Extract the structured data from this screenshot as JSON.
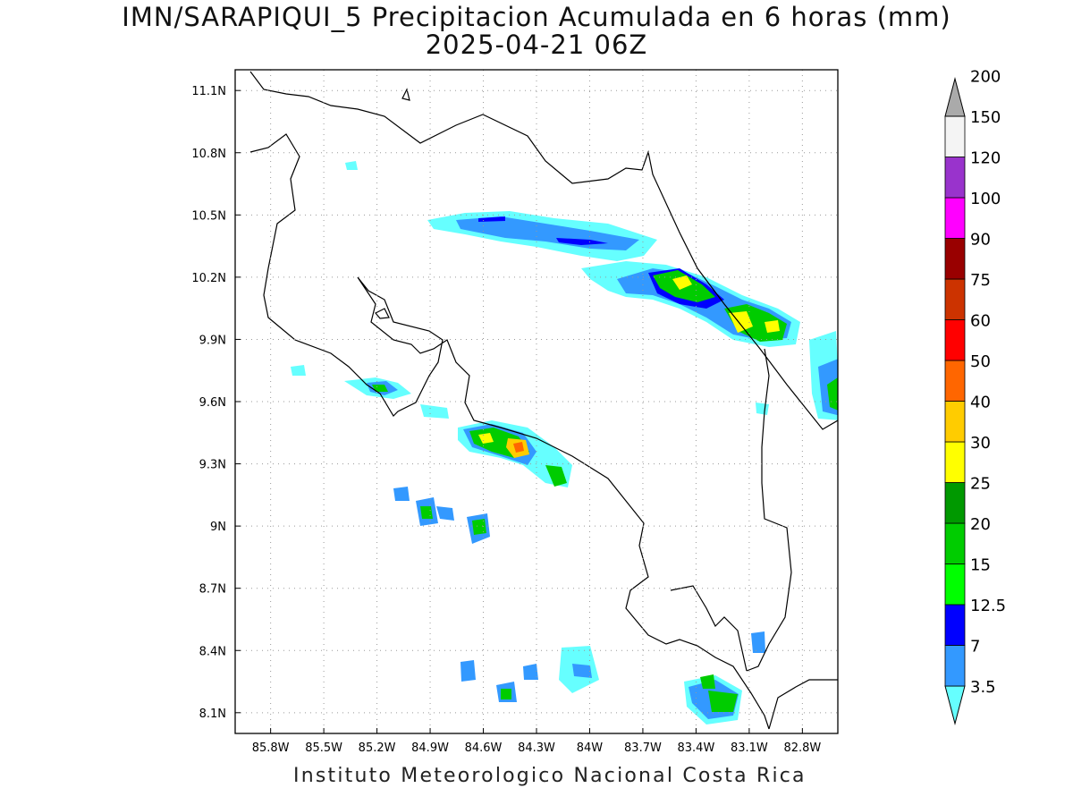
{
  "title": {
    "line1": "IMN/SARAPIQUI_5 Precipitacion Acumulada en 6 horas (mm)",
    "line2": "2025-04-21 06Z"
  },
  "footer": "Instituto Meteorologico Nacional Costa Rica",
  "map": {
    "lon_range": [
      -86.0,
      -82.6
    ],
    "lat_range": [
      8.0,
      11.2
    ],
    "grid": true,
    "lon_ticks": [
      "85.8W",
      "85.5W",
      "85.2W",
      "84.9W",
      "84.6W",
      "84.3W",
      "84W",
      "83.7W",
      "83.4W",
      "83.1W",
      "82.8W"
    ],
    "lat_ticks": [
      "11.1N",
      "10.8N",
      "10.5N",
      "10.2N",
      "9.9N",
      "9.6N",
      "9.3N",
      "9N",
      "8.7N",
      "8.4N",
      "8.1N"
    ]
  },
  "colorbar": {
    "labels": [
      "3.5",
      "7",
      "12.5",
      "15",
      "20",
      "25",
      "30",
      "40",
      "50",
      "60",
      "75",
      "90",
      "100",
      "120",
      "150",
      "200"
    ],
    "colors": [
      "#66ffff",
      "#3399ff",
      "#0000ff",
      "#00ff00",
      "#00cc00",
      "#009900",
      "#ffff00",
      "#ffcc00",
      "#ff6600",
      "#ff0000",
      "#cc3300",
      "#990000",
      "#ff00ff",
      "#9933cc",
      "#f4f4f4",
      "#aaaaaa"
    ]
  }
}
